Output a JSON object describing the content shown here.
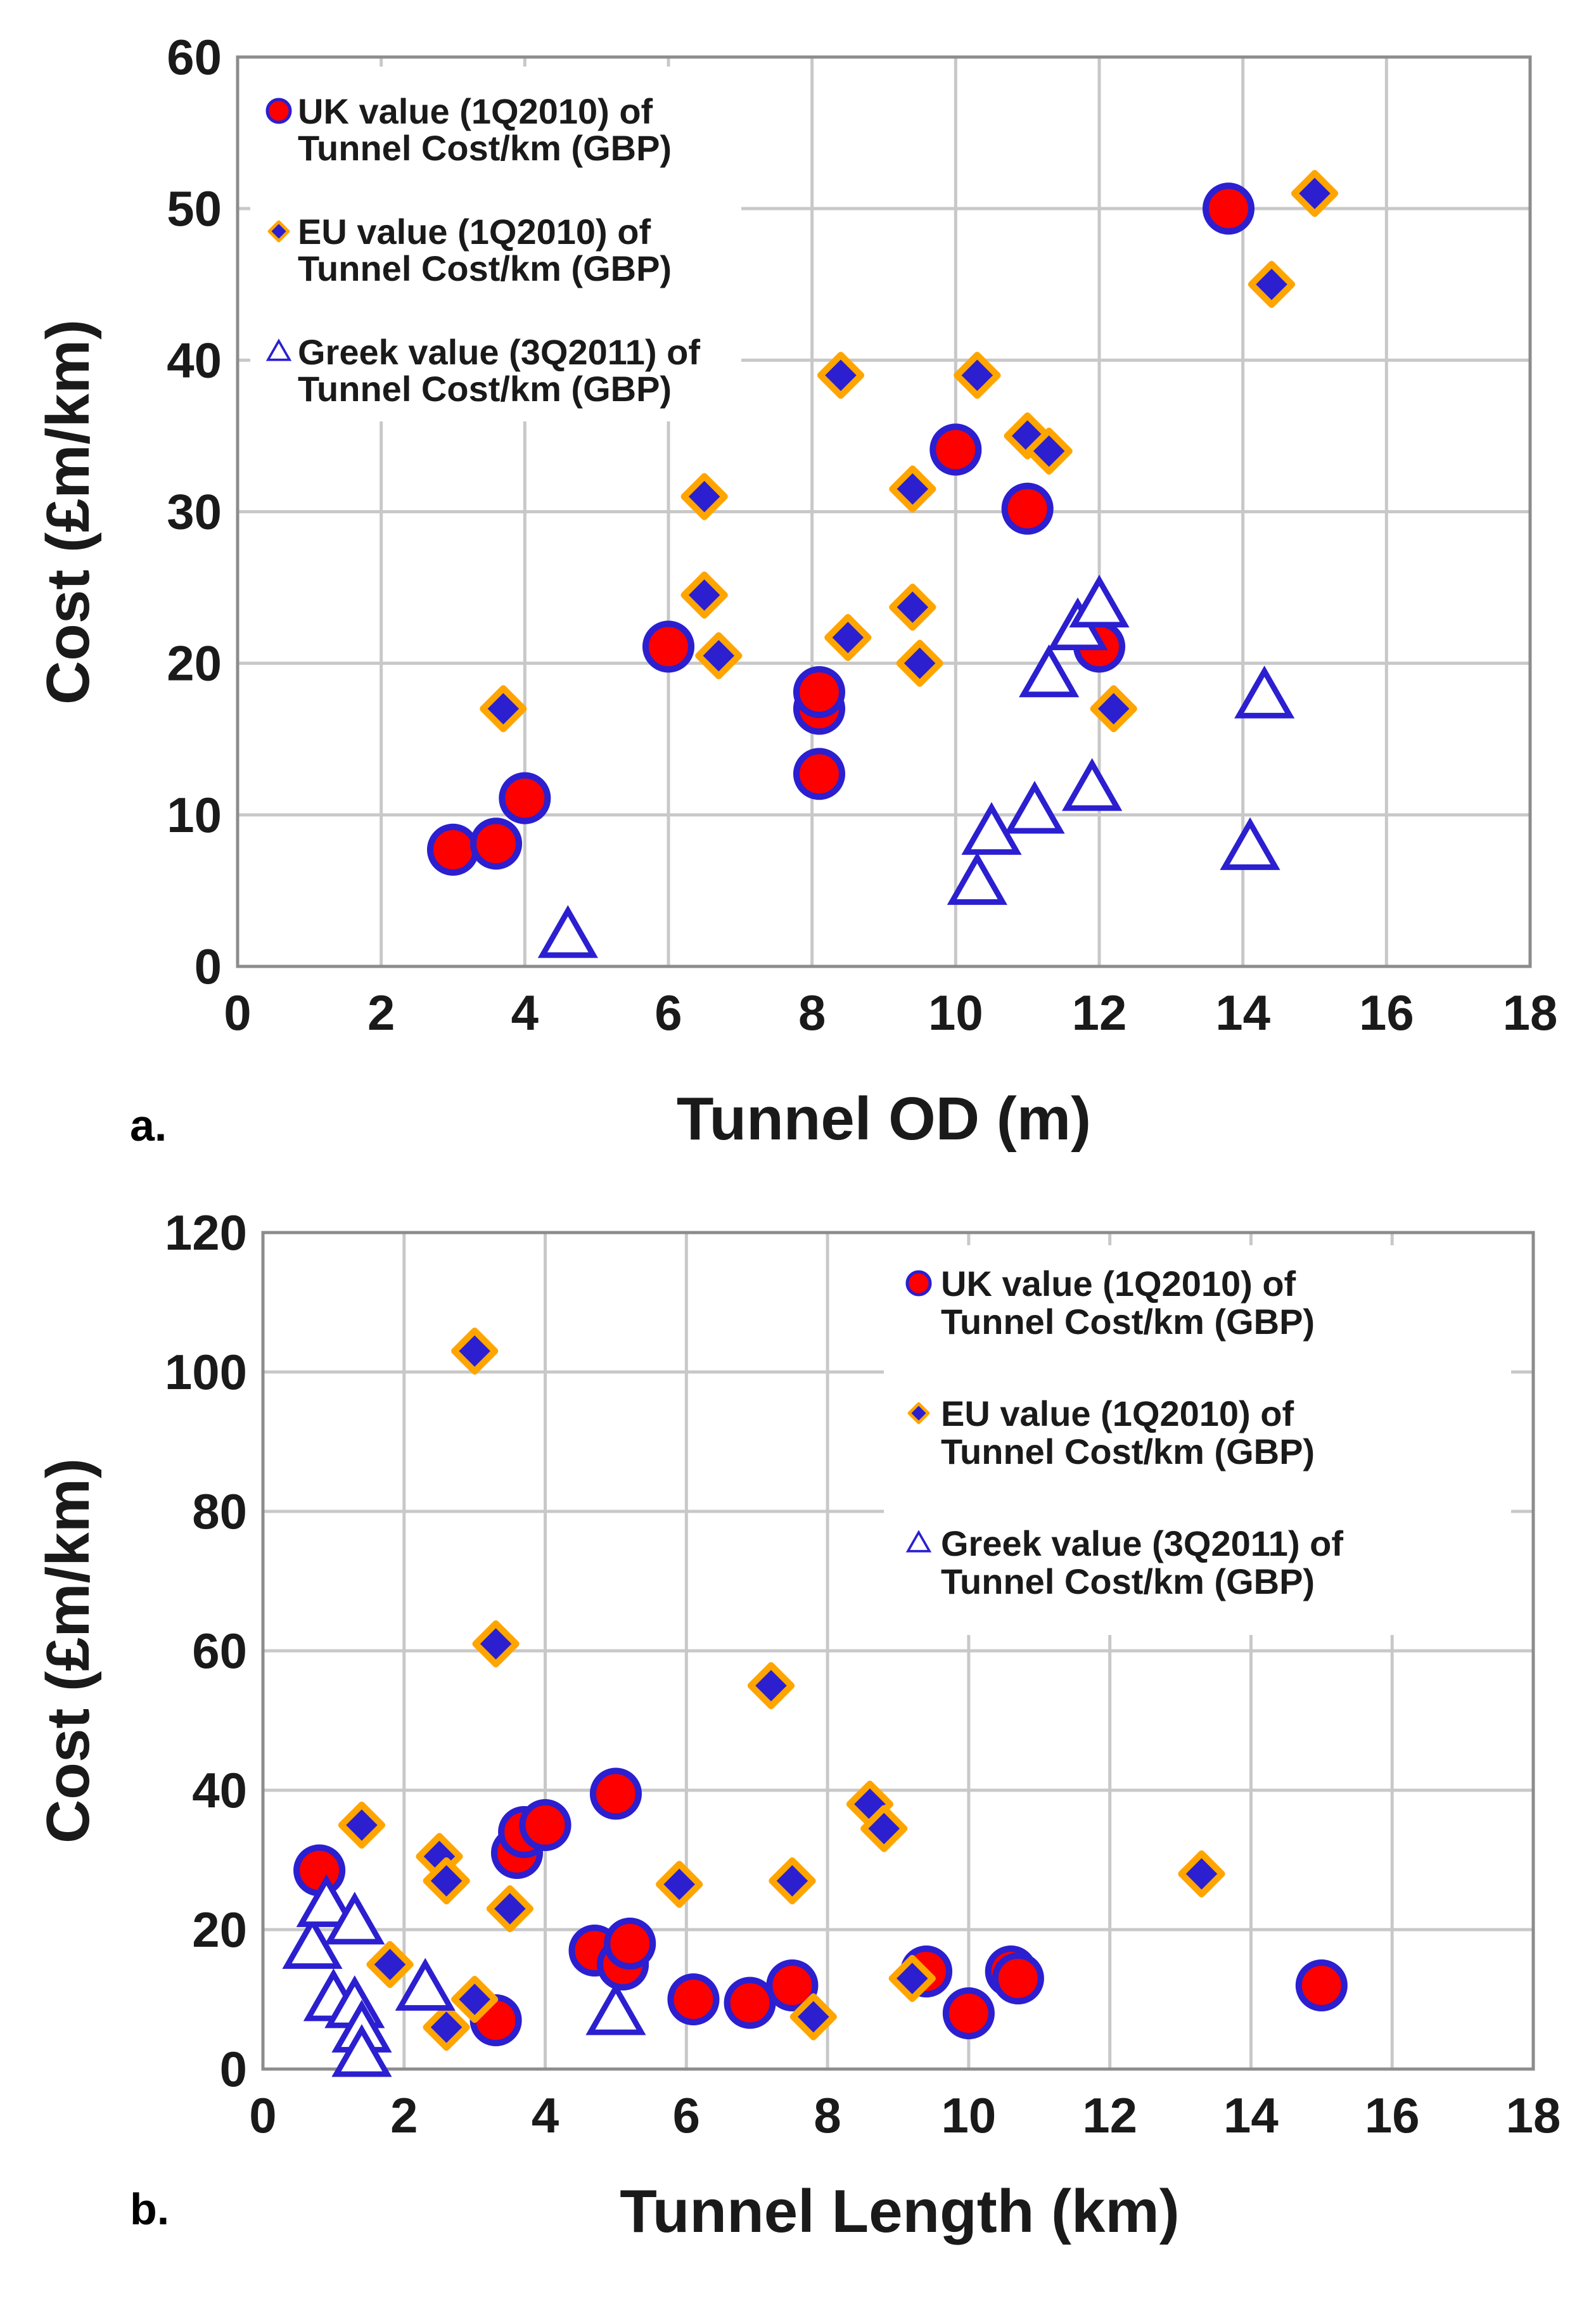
{
  "colors": {
    "uk_fill": "#ff0000",
    "uk_edge": "#2b1fd0",
    "eu_fill": "#2b1fd0",
    "eu_edge": "#ffa500",
    "greek_fill": "#ffffff",
    "greek_edge": "#2b1fd0"
  },
  "chart_data": [
    {
      "id": "a",
      "type": "scatter",
      "panel_label": "a.",
      "title": "",
      "xlabel": "Tunnel OD (m)",
      "ylabel": "Cost (£m/km)",
      "xlim": [
        0,
        18
      ],
      "ylim": [
        0,
        60
      ],
      "xticks": [
        0,
        2,
        4,
        6,
        8,
        10,
        12,
        14,
        16,
        18
      ],
      "yticks": [
        0,
        10,
        20,
        30,
        40,
        50,
        60
      ],
      "grid": true,
      "legend_position": "top-left",
      "series": [
        {
          "name": "UK value (1Q2010) of Tunnel Cost/km (GBP)",
          "legend_lines": [
            "UK value (1Q2010) of",
            "Tunnel Cost/km (GBP)"
          ],
          "marker": "circle",
          "points": [
            [
              3.0,
              7.7
            ],
            [
              3.6,
              8.1
            ],
            [
              4.0,
              11.1
            ],
            [
              6.0,
              21.1
            ],
            [
              8.1,
              12.7
            ],
            [
              8.1,
              17.0
            ],
            [
              8.1,
              18.1
            ],
            [
              10.0,
              34.1
            ],
            [
              11.0,
              30.2
            ],
            [
              12.0,
              21.1
            ],
            [
              13.8,
              50.0
            ]
          ]
        },
        {
          "name": "EU value (1Q2010) of Tunnel Cost/km (GBP)",
          "legend_lines": [
            "EU value (1Q2010) of",
            "Tunnel Cost/km (GBP)"
          ],
          "marker": "diamond",
          "points": [
            [
              3.7,
              17.0
            ],
            [
              6.5,
              31.0
            ],
            [
              6.5,
              24.5
            ],
            [
              6.7,
              20.5
            ],
            [
              8.4,
              39.0
            ],
            [
              8.5,
              21.7
            ],
            [
              9.4,
              31.5
            ],
            [
              9.4,
              23.7
            ],
            [
              9.5,
              20.0
            ],
            [
              10.3,
              39.0
            ],
            [
              11.0,
              35.0
            ],
            [
              11.3,
              34.0
            ],
            [
              12.2,
              17.0
            ],
            [
              14.4,
              45.0
            ],
            [
              15.0,
              51.0
            ]
          ]
        },
        {
          "name": "Greek value (3Q2011) of Tunnel Cost/km (GBP)",
          "legend_lines": [
            "Greek value (3Q2011) of",
            "Tunnel Cost/km (GBP)"
          ],
          "marker": "triangle",
          "points": [
            [
              4.6,
              2.0
            ],
            [
              10.3,
              5.5
            ],
            [
              10.5,
              8.8
            ],
            [
              11.1,
              10.2
            ],
            [
              11.3,
              19.2
            ],
            [
              11.7,
              22.3
            ],
            [
              11.9,
              11.7
            ],
            [
              12.0,
              23.8
            ],
            [
              14.1,
              7.8
            ],
            [
              14.3,
              17.8
            ]
          ]
        }
      ]
    },
    {
      "id": "b",
      "type": "scatter",
      "panel_label": "b.",
      "title": "",
      "xlabel": "Tunnel Length (km)",
      "ylabel": "Cost (£m/km)",
      "xlim": [
        0,
        18
      ],
      "ylim": [
        0,
        120
      ],
      "xticks": [
        0,
        2,
        4,
        6,
        8,
        10,
        12,
        14,
        16,
        18
      ],
      "yticks": [
        0,
        20,
        40,
        60,
        80,
        100,
        120
      ],
      "grid": true,
      "legend_position": "top-right",
      "series": [
        {
          "name": "UK value (1Q2010) of Tunnel Cost/km (GBP)",
          "legend_lines": [
            "UK value (1Q2010) of",
            "Tunnel Cost/km (GBP)"
          ],
          "marker": "circle",
          "points": [
            [
              0.8,
              28.5
            ],
            [
              3.3,
              7.0
            ],
            [
              3.6,
              31.0
            ],
            [
              3.7,
              34.0
            ],
            [
              4.0,
              35.0
            ],
            [
              4.7,
              17.0
            ],
            [
              5.0,
              39.5
            ],
            [
              5.1,
              15.0
            ],
            [
              5.2,
              18.0
            ],
            [
              6.1,
              10.0
            ],
            [
              6.9,
              9.5
            ],
            [
              7.5,
              12.0
            ],
            [
              9.4,
              14.0
            ],
            [
              10.0,
              8.0
            ],
            [
              10.6,
              14.0
            ],
            [
              10.7,
              13.0
            ],
            [
              15.0,
              12.0
            ]
          ]
        },
        {
          "name": "EU value (1Q2010) of Tunnel Cost/km (GBP)",
          "legend_lines": [
            "EU value (1Q2010) of",
            "Tunnel Cost/km (GBP)"
          ],
          "marker": "diamond",
          "points": [
            [
              1.4,
              35.0
            ],
            [
              1.8,
              15.0
            ],
            [
              2.5,
              30.5
            ],
            [
              2.6,
              27.0
            ],
            [
              2.6,
              6.0
            ],
            [
              3.0,
              103.0
            ],
            [
              3.0,
              10.0
            ],
            [
              3.3,
              61.0
            ],
            [
              3.5,
              23.0
            ],
            [
              5.9,
              26.5
            ],
            [
              7.2,
              55.0
            ],
            [
              7.5,
              27.0
            ],
            [
              7.8,
              7.5
            ],
            [
              8.6,
              38.0
            ],
            [
              8.8,
              34.5
            ],
            [
              9.2,
              13.0
            ],
            [
              13.3,
              28.0
            ]
          ]
        },
        {
          "name": "Greek value (3Q2011) of Tunnel Cost/km (GBP)",
          "legend_lines": [
            "Greek value (3Q2011) of",
            "Tunnel Cost/km (GBP)"
          ],
          "marker": "triangle",
          "points": [
            [
              0.7,
              17.5
            ],
            [
              0.9,
              23.5
            ],
            [
              1.0,
              10.0
            ],
            [
              1.3,
              21.0
            ],
            [
              1.3,
              9.0
            ],
            [
              1.4,
              5.5
            ],
            [
              1.4,
              2.0
            ],
            [
              2.3,
              11.5
            ],
            [
              5.0,
              8.0
            ]
          ]
        }
      ]
    }
  ]
}
